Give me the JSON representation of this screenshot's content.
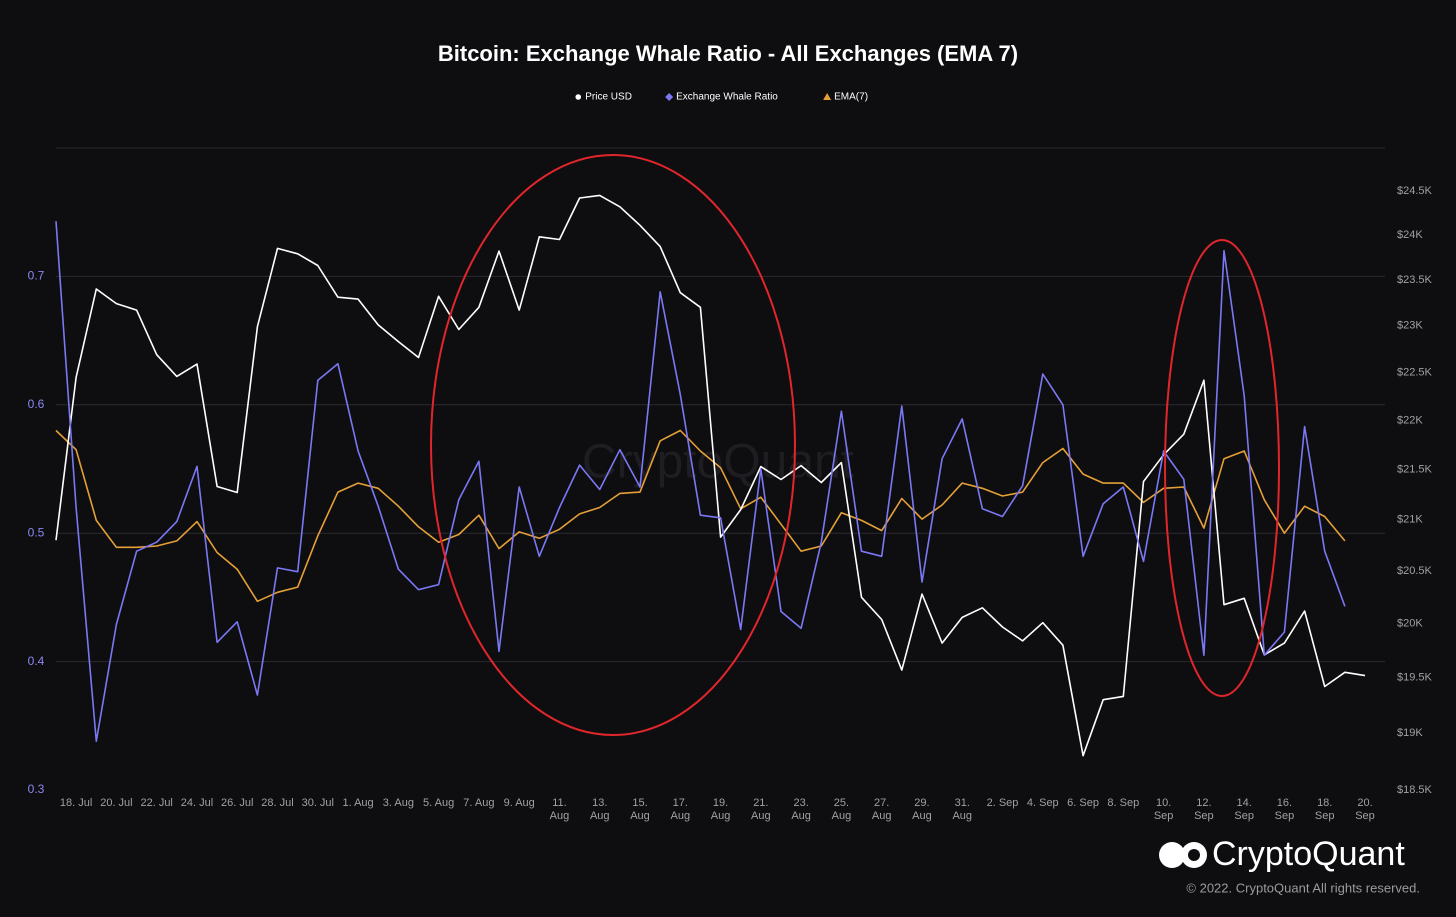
{
  "brand": "CryptoQuant",
  "copyright": "© 2022. CryptoQuant All rights reserved.",
  "chart_data": {
    "type": "line",
    "title": "Bitcoin: Exchange Whale Ratio - All Exchanges (EMA 7)",
    "categories": [
      null,
      "18. Jul",
      null,
      "20. Jul",
      null,
      "22. Jul",
      null,
      "24. Jul",
      null,
      "26. Jul",
      null,
      "28. Jul",
      null,
      "30. Jul",
      null,
      "1. Aug",
      null,
      "3. Aug",
      null,
      "5. Aug",
      null,
      "7. Aug",
      null,
      "9. Aug",
      null,
      "11. Aug",
      null,
      "13. Aug",
      null,
      "15. Aug",
      null,
      "17. Aug",
      null,
      "19. Aug",
      null,
      "21. Aug",
      null,
      "23. Aug",
      null,
      "25. Aug",
      null,
      "27. Aug",
      null,
      "29. Aug",
      null,
      "31. Aug",
      null,
      "2. Sep",
      null,
      "4. Sep",
      null,
      "6. Sep",
      null,
      "8. Sep",
      null,
      "10. Sep",
      null,
      "12. Sep",
      null,
      "14. Sep",
      null,
      "16. Sep",
      null,
      "18. Sep",
      null,
      "20. Sep"
    ],
    "series": [
      {
        "name": "Price USD",
        "color": "#ffffff",
        "symbol": "circle",
        "axis": "y2",
        "values": [
          20800,
          22450,
          23400,
          23240,
          23170,
          22690,
          22460,
          22590,
          21330,
          21270,
          22990,
          23850,
          23790,
          23660,
          23310,
          23290,
          23010,
          22830,
          22660,
          23320,
          22960,
          23200,
          23820,
          23170,
          23980,
          23950,
          24420,
          24450,
          24320,
          24110,
          23870,
          23360,
          23200,
          20830,
          21100,
          21530,
          21400,
          21540,
          21370,
          21570,
          20250,
          20040,
          19570,
          20280,
          19820,
          20060,
          20150,
          19970,
          19840,
          20010,
          19800,
          18800,
          19300,
          19330,
          21380,
          21650,
          21860,
          22420,
          20180,
          20240,
          19710,
          19820,
          20120,
          19420,
          19550,
          19520
        ]
      },
      {
        "name": "Exchange Whale Ratio",
        "color": "#7b78f5",
        "symbol": "diamond",
        "values": [
          0.743,
          0.52,
          0.338,
          0.429,
          0.486,
          0.493,
          0.509,
          0.552,
          0.415,
          0.431,
          0.374,
          0.473,
          0.47,
          0.619,
          0.632,
          0.564,
          0.521,
          0.472,
          0.456,
          0.46,
          0.526,
          0.556,
          0.408,
          0.536,
          0.482,
          0.52,
          0.553,
          0.534,
          0.565,
          0.536,
          0.688,
          0.608,
          0.514,
          0.512,
          0.425,
          0.55,
          0.439,
          0.426,
          0.493,
          0.595,
          0.486,
          0.482,
          0.599,
          0.462,
          0.558,
          0.589,
          0.519,
          0.513,
          0.537,
          0.624,
          0.6,
          0.482,
          0.523,
          0.536,
          0.478,
          0.564,
          0.542,
          0.405,
          0.72,
          0.607,
          0.405,
          0.423,
          0.583,
          0.486,
          0.443,
          null
        ]
      },
      {
        "name": "EMA(7)",
        "color": "#e5a037",
        "symbol": "triangle",
        "values": [
          0.58,
          0.565,
          0.51,
          0.489,
          0.489,
          0.49,
          0.494,
          0.509,
          0.485,
          0.472,
          0.447,
          0.454,
          0.458,
          0.498,
          0.532,
          0.539,
          0.535,
          0.521,
          0.505,
          0.493,
          0.499,
          0.514,
          0.488,
          0.501,
          0.496,
          0.503,
          0.515,
          0.52,
          0.531,
          0.532,
          0.572,
          0.58,
          0.564,
          0.551,
          0.519,
          0.528,
          0.507,
          0.486,
          0.49,
          0.516,
          0.51,
          0.502,
          0.527,
          0.511,
          0.522,
          0.539,
          0.535,
          0.529,
          0.532,
          0.555,
          0.566,
          0.546,
          0.539,
          0.539,
          0.524,
          0.535,
          0.536,
          0.504,
          0.558,
          0.564,
          0.526,
          0.5,
          0.521,
          0.513,
          0.494,
          null
        ]
      }
    ],
    "ylim": [
      0.3,
      0.8
    ],
    "yticks": [
      0.3,
      0.4,
      0.5,
      0.6,
      0.7
    ],
    "y2lim": [
      18500,
      25000
    ],
    "y2log": true,
    "y2ticks": [
      {
        "value": 18500,
        "label": "$18.5K"
      },
      {
        "value": 19000,
        "label": "$19K"
      },
      {
        "value": 19500,
        "label": "$19.5K"
      },
      {
        "value": 20000,
        "label": "$20K"
      },
      {
        "value": 20500,
        "label": "$20.5K"
      },
      {
        "value": 21000,
        "label": "$21K"
      },
      {
        "value": 21500,
        "label": "$21.5K"
      },
      {
        "value": 22000,
        "label": "$22K"
      },
      {
        "value": 22500,
        "label": "$22.5K"
      },
      {
        "value": 23000,
        "label": "$23K"
      },
      {
        "value": 23500,
        "label": "$23.5K"
      },
      {
        "value": 24000,
        "label": "$24K"
      },
      {
        "value": 24500,
        "label": "$24.5K"
      }
    ],
    "grid": true,
    "legend": "top"
  }
}
